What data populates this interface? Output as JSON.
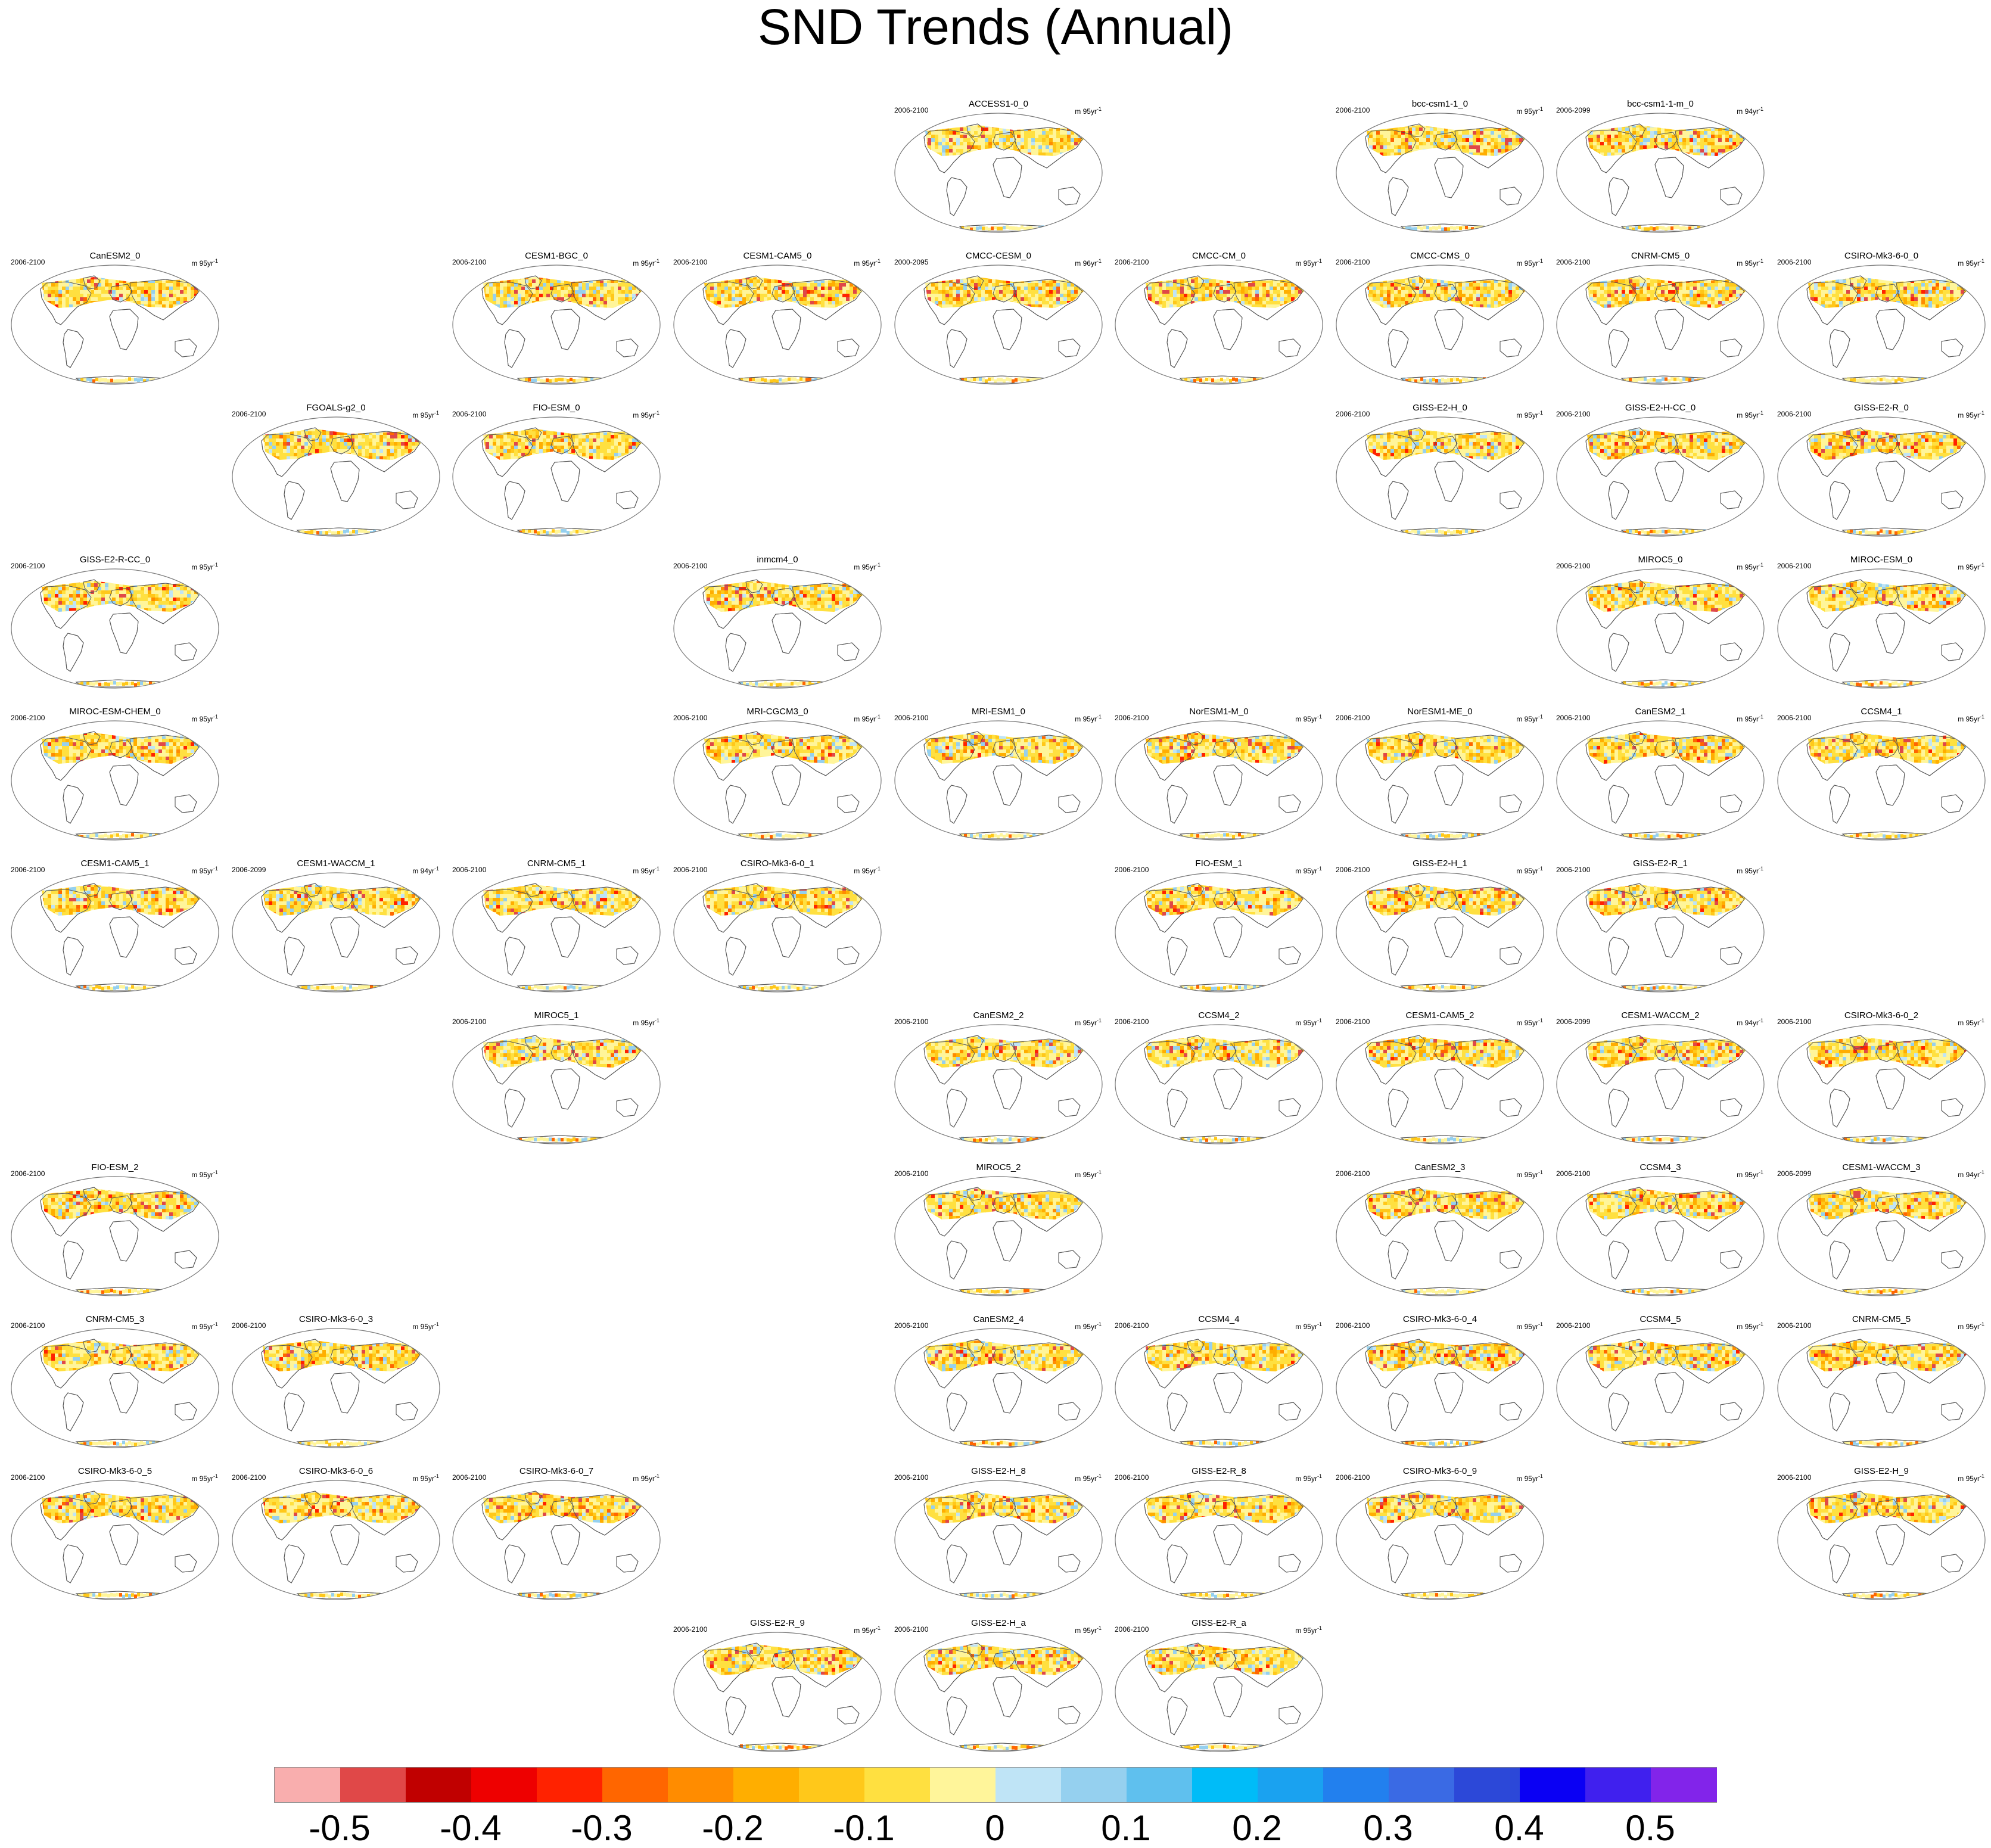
{
  "title": "SND Trends (Annual)",
  "palette": [
    "#f9aeae",
    "#e04848",
    "#c00000",
    "#ee0000",
    "#ff2200",
    "#ff6600",
    "#ff8c00",
    "#ffae00",
    "#ffc81a",
    "#ffe040",
    "#fff59a",
    "#bfe4f6",
    "#95d0ef",
    "#5fc0ee",
    "#00bcf8",
    "#1aa2f0",
    "#2280ee",
    "#3a6ae4",
    "#2c48d8",
    "#0a00f4",
    "#4020ee",
    "#8224ea"
  ],
  "colorbar_ticks": [
    "-0.5",
    "-0.4",
    "-0.3",
    "-0.2",
    "-0.1",
    "0",
    "0.1",
    "0.2",
    "0.3",
    "0.4",
    "0.5"
  ],
  "panels": [
    {
      "row": 0,
      "col": 4,
      "title": "ACCESS1-0_0",
      "years": "2006-2100",
      "units": "m 95yr",
      "sup": "-1"
    },
    {
      "row": 0,
      "col": 6,
      "title": "bcc-csm1-1_0",
      "years": "2006-2100",
      "units": "m 95yr",
      "sup": "-1"
    },
    {
      "row": 0,
      "col": 7,
      "title": "bcc-csm1-1-m_0",
      "years": "2006-2099",
      "units": "m 94yr",
      "sup": "-1"
    },
    {
      "row": 1,
      "col": 0,
      "title": "CanESM2_0",
      "years": "2006-2100",
      "units": "m 95yr",
      "sup": "-1"
    },
    {
      "row": 1,
      "col": 2,
      "title": "CESM1-BGC_0",
      "years": "2006-2100",
      "units": "m 95yr",
      "sup": "-1"
    },
    {
      "row": 1,
      "col": 3,
      "title": "CESM1-CAM5_0",
      "years": "2006-2100",
      "units": "m 95yr",
      "sup": "-1"
    },
    {
      "row": 1,
      "col": 4,
      "title": "CMCC-CESM_0",
      "years": "2000-2095",
      "units": "m 96yr",
      "sup": "-1"
    },
    {
      "row": 1,
      "col": 5,
      "title": "CMCC-CM_0",
      "years": "2006-2100",
      "units": "m 95yr",
      "sup": "-1"
    },
    {
      "row": 1,
      "col": 6,
      "title": "CMCC-CMS_0",
      "years": "2006-2100",
      "units": "m 95yr",
      "sup": "-1"
    },
    {
      "row": 1,
      "col": 7,
      "title": "CNRM-CM5_0",
      "years": "2006-2100",
      "units": "m 95yr",
      "sup": "-1"
    },
    {
      "row": 1,
      "col": 8,
      "title": "CSIRO-Mk3-6-0_0",
      "years": "2006-2100",
      "units": "m 95yr",
      "sup": "-1"
    },
    {
      "row": 2,
      "col": 1,
      "title": "FGOALS-g2_0",
      "years": "2006-2100",
      "units": "m 95yr",
      "sup": "-1"
    },
    {
      "row": 2,
      "col": 2,
      "title": "FIO-ESM_0",
      "years": "2006-2100",
      "units": "m 95yr",
      "sup": "-1"
    },
    {
      "row": 2,
      "col": 6,
      "title": "GISS-E2-H_0",
      "years": "2006-2100",
      "units": "m 95yr",
      "sup": "-1"
    },
    {
      "row": 2,
      "col": 7,
      "title": "GISS-E2-H-CC_0",
      "years": "2006-2100",
      "units": "m 95yr",
      "sup": "-1"
    },
    {
      "row": 2,
      "col": 8,
      "title": "GISS-E2-R_0",
      "years": "2006-2100",
      "units": "m 95yr",
      "sup": "-1"
    },
    {
      "row": 3,
      "col": 0,
      "title": "GISS-E2-R-CC_0",
      "years": "2006-2100",
      "units": "m 95yr",
      "sup": "-1"
    },
    {
      "row": 3,
      "col": 3,
      "title": "inmcm4_0",
      "years": "2006-2100",
      "units": "m 95yr",
      "sup": "-1"
    },
    {
      "row": 3,
      "col": 7,
      "title": "MIROC5_0",
      "years": "2006-2100",
      "units": "m 95yr",
      "sup": "-1"
    },
    {
      "row": 3,
      "col": 8,
      "title": "MIROC-ESM_0",
      "years": "2006-2100",
      "units": "m 95yr",
      "sup": "-1"
    },
    {
      "row": 4,
      "col": 0,
      "title": "MIROC-ESM-CHEM_0",
      "years": "2006-2100",
      "units": "m 95yr",
      "sup": "-1"
    },
    {
      "row": 4,
      "col": 3,
      "title": "MRI-CGCM3_0",
      "years": "2006-2100",
      "units": "m 95yr",
      "sup": "-1"
    },
    {
      "row": 4,
      "col": 4,
      "title": "MRI-ESM1_0",
      "years": "2006-2100",
      "units": "m 95yr",
      "sup": "-1"
    },
    {
      "row": 4,
      "col": 5,
      "title": "NorESM1-M_0",
      "years": "2006-2100",
      "units": "m 95yr",
      "sup": "-1"
    },
    {
      "row": 4,
      "col": 6,
      "title": "NorESM1-ME_0",
      "years": "2006-2100",
      "units": "m 95yr",
      "sup": "-1"
    },
    {
      "row": 4,
      "col": 7,
      "title": "CanESM2_1",
      "years": "2006-2100",
      "units": "m 95yr",
      "sup": "-1"
    },
    {
      "row": 4,
      "col": 8,
      "title": "CCSM4_1",
      "years": "2006-2100",
      "units": "m 95yr",
      "sup": "-1"
    },
    {
      "row": 5,
      "col": 0,
      "title": "CESM1-CAM5_1",
      "years": "2006-2100",
      "units": "m 95yr",
      "sup": "-1"
    },
    {
      "row": 5,
      "col": 1,
      "title": "CESM1-WACCM_1",
      "years": "2006-2099",
      "units": "m 94yr",
      "sup": "-1"
    },
    {
      "row": 5,
      "col": 2,
      "title": "CNRM-CM5_1",
      "years": "2006-2100",
      "units": "m 95yr",
      "sup": "-1"
    },
    {
      "row": 5,
      "col": 3,
      "title": "CSIRO-Mk3-6-0_1",
      "years": "2006-2100",
      "units": "m 95yr",
      "sup": "-1"
    },
    {
      "row": 5,
      "col": 5,
      "title": "FIO-ESM_1",
      "years": "2006-2100",
      "units": "m 95yr",
      "sup": "-1"
    },
    {
      "row": 5,
      "col": 6,
      "title": "GISS-E2-H_1",
      "years": "2006-2100",
      "units": "m 95yr",
      "sup": "-1"
    },
    {
      "row": 5,
      "col": 7,
      "title": "GISS-E2-R_1",
      "years": "2006-2100",
      "units": "m 95yr",
      "sup": "-1"
    },
    {
      "row": 6,
      "col": 2,
      "title": "MIROC5_1",
      "years": "2006-2100",
      "units": "m 95yr",
      "sup": "-1"
    },
    {
      "row": 6,
      "col": 4,
      "title": "CanESM2_2",
      "years": "2006-2100",
      "units": "m 95yr",
      "sup": "-1"
    },
    {
      "row": 6,
      "col": 5,
      "title": "CCSM4_2",
      "years": "2006-2100",
      "units": "m 95yr",
      "sup": "-1"
    },
    {
      "row": 6,
      "col": 6,
      "title": "CESM1-CAM5_2",
      "years": "2006-2100",
      "units": "m 95yr",
      "sup": "-1"
    },
    {
      "row": 6,
      "col": 7,
      "title": "CESM1-WACCM_2",
      "years": "2006-2099",
      "units": "m 94yr",
      "sup": "-1"
    },
    {
      "row": 6,
      "col": 8,
      "title": "CSIRO-Mk3-6-0_2",
      "years": "2006-2100",
      "units": "m 95yr",
      "sup": "-1"
    },
    {
      "row": 7,
      "col": 0,
      "title": "FIO-ESM_2",
      "years": "2006-2100",
      "units": "m 95yr",
      "sup": "-1"
    },
    {
      "row": 7,
      "col": 4,
      "title": "MIROC5_2",
      "years": "2006-2100",
      "units": "m 95yr",
      "sup": "-1"
    },
    {
      "row": 7,
      "col": 6,
      "title": "CanESM2_3",
      "years": "2006-2100",
      "units": "m 95yr",
      "sup": "-1"
    },
    {
      "row": 7,
      "col": 7,
      "title": "CCSM4_3",
      "years": "2006-2100",
      "units": "m 95yr",
      "sup": "-1"
    },
    {
      "row": 7,
      "col": 8,
      "title": "CESM1-WACCM_3",
      "years": "2006-2099",
      "units": "m 94yr",
      "sup": "-1"
    },
    {
      "row": 8,
      "col": 0,
      "title": "CNRM-CM5_3",
      "years": "2006-2100",
      "units": "m 95yr",
      "sup": "-1"
    },
    {
      "row": 8,
      "col": 1,
      "title": "CSIRO-Mk3-6-0_3",
      "years": "2006-2100",
      "units": "m 95yr",
      "sup": "-1"
    },
    {
      "row": 8,
      "col": 4,
      "title": "CanESM2_4",
      "years": "2006-2100",
      "units": "m 95yr",
      "sup": "-1"
    },
    {
      "row": 8,
      "col": 5,
      "title": "CCSM4_4",
      "years": "2006-2100",
      "units": "m 95yr",
      "sup": "-1"
    },
    {
      "row": 8,
      "col": 6,
      "title": "CSIRO-Mk3-6-0_4",
      "years": "2006-2100",
      "units": "m 95yr",
      "sup": "-1"
    },
    {
      "row": 8,
      "col": 7,
      "title": "CCSM4_5",
      "years": "2006-2100",
      "units": "m 95yr",
      "sup": "-1"
    },
    {
      "row": 8,
      "col": 8,
      "title": "CNRM-CM5_5",
      "years": "2006-2100",
      "units": "m 95yr",
      "sup": "-1"
    },
    {
      "row": 9,
      "col": 0,
      "title": "CSIRO-Mk3-6-0_5",
      "years": "2006-2100",
      "units": "m 95yr",
      "sup": "-1"
    },
    {
      "row": 9,
      "col": 1,
      "title": "CSIRO-Mk3-6-0_6",
      "years": "2006-2100",
      "units": "m 95yr",
      "sup": "-1"
    },
    {
      "row": 9,
      "col": 2,
      "title": "CSIRO-Mk3-6-0_7",
      "years": "2006-2100",
      "units": "m 95yr",
      "sup": "-1"
    },
    {
      "row": 9,
      "col": 4,
      "title": "GISS-E2-H_8",
      "years": "2006-2100",
      "units": "m 95yr",
      "sup": "-1"
    },
    {
      "row": 9,
      "col": 5,
      "title": "GISS-E2-R_8",
      "years": "2006-2100",
      "units": "m 95yr",
      "sup": "-1"
    },
    {
      "row": 9,
      "col": 6,
      "title": "CSIRO-Mk3-6-0_9",
      "years": "2006-2100",
      "units": "m 95yr",
      "sup": "-1"
    },
    {
      "row": 9,
      "col": 8,
      "title": "GISS-E2-H_9",
      "years": "2006-2100",
      "units": "m 95yr",
      "sup": "-1"
    },
    {
      "row": 10,
      "col": 3,
      "title": "GISS-E2-R_9",
      "years": "2006-2100",
      "units": "m 95yr",
      "sup": "-1"
    },
    {
      "row": 10,
      "col": 4,
      "title": "GISS-E2-H_a",
      "years": "2006-2100",
      "units": "m 95yr",
      "sup": "-1"
    },
    {
      "row": 10,
      "col": 5,
      "title": "GISS-E2-R_a",
      "years": "2006-2100",
      "units": "m 95yr",
      "sup": "-1"
    }
  ]
}
